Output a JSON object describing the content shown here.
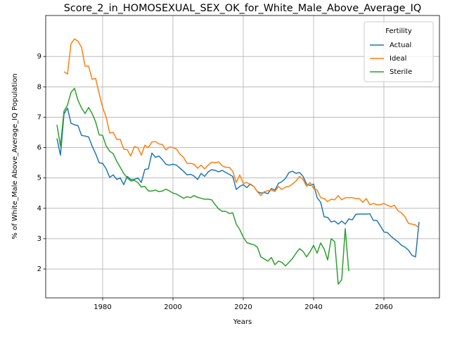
{
  "chart_data": {
    "type": "line",
    "title": "Score_2_in_HOMOSEXUAL_SEX_OK_for_White_Male_Above_Average_IQ",
    "xlabel": "Years",
    "ylabel": "% of White_Male Above_Average_IQ Population",
    "legend_title": "Fertility",
    "legend": "upper right",
    "grid": true,
    "x": [
      1967,
      1968,
      1969,
      1970,
      1971,
      1972,
      1973,
      1974,
      1975,
      1976,
      1977,
      1978,
      1979,
      1980,
      1981,
      1982,
      1983,
      1984,
      1985,
      1986,
      1987,
      1988,
      1989,
      1990,
      1991,
      1992,
      1993,
      1994,
      1995,
      1996,
      1997,
      1998,
      1999,
      2000,
      2001,
      2002,
      2003,
      2004,
      2005,
      2006,
      2007,
      2008,
      2009,
      2010,
      2011,
      2012,
      2013,
      2014,
      2015,
      2016,
      2017,
      2018,
      2019,
      2020,
      2021,
      2022,
      2023,
      2024,
      2025,
      2026,
      2027,
      2028,
      2029,
      2030,
      2031,
      2032,
      2033,
      2034,
      2035,
      2036,
      2037,
      2038,
      2039,
      2040,
      2041,
      2042,
      2043,
      2044,
      2045,
      2046,
      2047,
      2048,
      2049,
      2050,
      2051,
      2052,
      2053,
      2054,
      2055,
      2056,
      2057,
      2058,
      2059,
      2060,
      2061,
      2062,
      2063,
      2064,
      2065,
      2066,
      2067,
      2068,
      2069,
      2070
    ],
    "series": [
      {
        "name": "Actual",
        "color": "#1f77b4",
        "values": [
          6.3,
          5.75,
          7.1,
          7.3,
          6.8,
          6.75,
          6.72,
          6.4,
          6.38,
          6.35,
          6.05,
          5.8,
          5.5,
          5.48,
          5.3,
          5.02,
          5.1,
          4.95,
          5.0,
          4.78,
          5.05,
          4.95,
          4.95,
          5.0,
          4.85,
          5.28,
          5.3,
          5.82,
          5.68,
          5.72,
          5.6,
          5.45,
          5.42,
          5.45,
          5.42,
          5.32,
          5.22,
          5.1,
          5.12,
          5.06,
          4.95,
          5.15,
          5.05,
          5.2,
          5.27,
          5.25,
          5.2,
          5.25,
          5.18,
          5.12,
          5.05,
          4.62,
          4.72,
          4.78,
          4.68,
          4.8,
          4.72,
          4.55,
          4.5,
          4.52,
          4.48,
          4.65,
          4.6,
          4.82,
          4.88,
          4.98,
          5.18,
          5.22,
          5.15,
          5.18,
          5.05,
          4.8,
          4.75,
          4.8,
          4.35,
          4.2,
          3.72,
          3.7,
          3.55,
          3.58,
          3.48,
          3.58,
          3.48,
          3.65,
          3.62,
          3.8,
          3.81,
          3.81,
          3.81,
          3.82,
          3.6,
          3.6,
          3.42,
          3.22,
          3.2,
          3.08,
          2.98,
          2.9,
          2.78,
          2.72,
          2.62,
          2.45,
          2.4,
          3.55
        ]
      },
      {
        "name": "Ideal",
        "color": "#ff7f0e",
        "values": [
          null,
          null,
          8.5,
          8.42,
          9.42,
          9.58,
          9.5,
          9.3,
          8.68,
          8.68,
          8.25,
          8.28,
          7.78,
          7.32,
          7.0,
          6.48,
          6.5,
          6.27,
          6.27,
          5.95,
          5.93,
          5.72,
          6.03,
          6.0,
          5.75,
          6.08,
          6.0,
          6.18,
          6.2,
          6.12,
          6.1,
          5.92,
          6.02,
          6.0,
          5.95,
          5.78,
          5.68,
          5.48,
          5.48,
          5.45,
          5.32,
          5.42,
          5.3,
          5.42,
          5.52,
          5.5,
          5.53,
          5.4,
          5.35,
          5.35,
          5.22,
          4.85,
          5.1,
          4.82,
          4.85,
          4.78,
          4.72,
          4.55,
          4.42,
          4.55,
          4.58,
          4.6,
          4.55,
          4.72,
          4.62,
          4.7,
          4.72,
          4.8,
          4.9,
          5.05,
          4.95,
          4.72,
          4.85,
          4.65,
          4.6,
          4.35,
          4.32,
          4.22,
          4.3,
          4.28,
          4.42,
          4.28,
          4.35,
          4.35,
          4.35,
          4.32,
          4.32,
          4.2,
          4.32,
          4.12,
          4.16,
          4.12,
          4.12,
          4.16,
          4.1,
          4.05,
          4.1,
          3.92,
          3.85,
          3.72,
          3.5,
          3.48,
          3.45,
          3.35
        ]
      },
      {
        "name": "Sterile",
        "color": "#2ca02c",
        "values": [
          6.75,
          6.05,
          7.2,
          7.4,
          7.82,
          7.95,
          7.55,
          7.3,
          7.12,
          7.32,
          7.12,
          6.85,
          6.42,
          6.4,
          6.05,
          5.88,
          5.8,
          5.55,
          5.35,
          5.15,
          5.0,
          4.9,
          4.92,
          4.85,
          4.7,
          4.72,
          4.57,
          4.57,
          4.6,
          4.55,
          4.57,
          4.63,
          4.57,
          4.5,
          4.47,
          4.4,
          4.33,
          4.38,
          4.35,
          4.42,
          4.36,
          4.33,
          4.3,
          4.3,
          4.28,
          4.12,
          3.98,
          3.9,
          3.9,
          3.83,
          3.85,
          3.48,
          3.3,
          3.05,
          2.87,
          2.83,
          2.8,
          2.72,
          2.4,
          2.33,
          2.26,
          2.38,
          2.14,
          2.26,
          2.22,
          2.1,
          2.22,
          2.35,
          2.52,
          2.67,
          2.58,
          2.4,
          2.57,
          2.78,
          2.52,
          2.86,
          2.66,
          2.3,
          3.0,
          2.9,
          1.5,
          1.65,
          3.33,
          1.93,
          null,
          null,
          null,
          null,
          null,
          null,
          null,
          null,
          null,
          null,
          null,
          null,
          null,
          null,
          null,
          null,
          null,
          null,
          null,
          null
        ]
      }
    ],
    "xlim": [
      1963.8,
      2075.8
    ],
    "xticks": [
      1980,
      2000,
      2020,
      2040,
      2060
    ],
    "ylim": [
      1.05,
      10.35
    ],
    "yticks": [
      2,
      3,
      4,
      5,
      6,
      7,
      8,
      9
    ]
  }
}
